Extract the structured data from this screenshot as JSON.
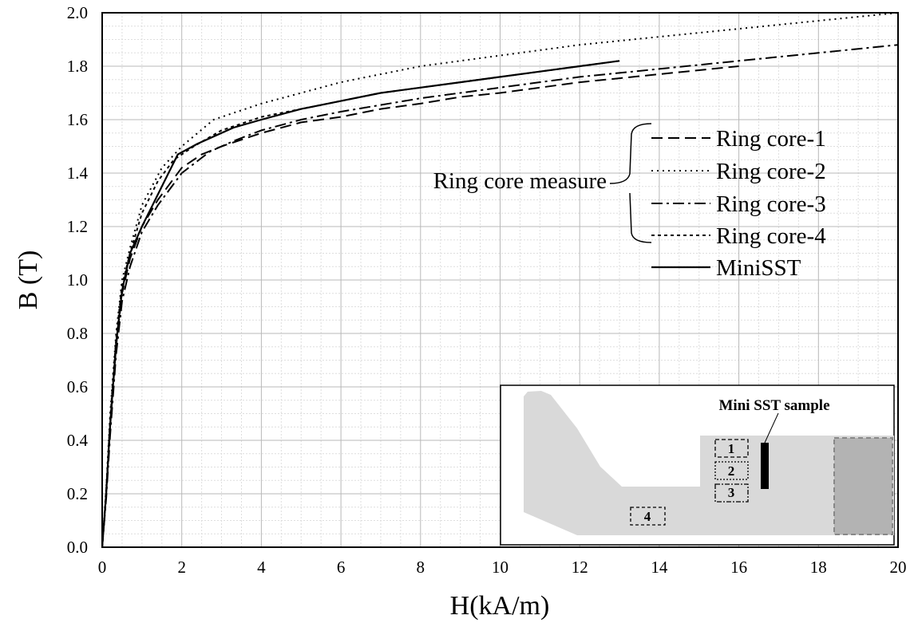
{
  "chart_data": {
    "type": "line",
    "title": "",
    "xlabel": "H(kA/m)",
    "ylabel": "B (T)",
    "xlim": [
      0,
      20
    ],
    "ylim": [
      0,
      2.0
    ],
    "xticks": [
      "0",
      "2",
      "4",
      "6",
      "8",
      "10",
      "12",
      "14",
      "16",
      "18",
      "20"
    ],
    "yticks": [
      "0.0",
      "0.2",
      "0.4",
      "0.6",
      "0.8",
      "1.0",
      "1.2",
      "1.4",
      "1.6",
      "1.8",
      "2.0"
    ],
    "grid": true,
    "legend_position": "right",
    "legend_group_label": "Ring core measure",
    "series": [
      {
        "name": "Ring core-1",
        "style": "dashed",
        "x": [
          0,
          0.1,
          0.2,
          0.35,
          0.5,
          0.7,
          1.0,
          1.4,
          2.0,
          2.5,
          3.0,
          4.0,
          5.0,
          6.0,
          7.0,
          8.0,
          9.0,
          10.0,
          11.0,
          12.0,
          13.0,
          14.0,
          15.0,
          16.0
        ],
        "y": [
          0,
          0.2,
          0.45,
          0.75,
          0.95,
          1.08,
          1.2,
          1.3,
          1.42,
          1.47,
          1.5,
          1.55,
          1.59,
          1.61,
          1.64,
          1.66,
          1.685,
          1.7,
          1.72,
          1.74,
          1.755,
          1.77,
          1.785,
          1.8
        ]
      },
      {
        "name": "Ring core-2",
        "style": "dotted",
        "x": [
          0,
          0.1,
          0.2,
          0.35,
          0.5,
          0.7,
          1.0,
          1.5,
          2.0,
          2.8,
          4.0,
          6.0,
          8.0,
          10.0,
          12.0,
          14.0,
          16.0,
          18.0,
          20.0
        ],
        "y": [
          0,
          0.22,
          0.5,
          0.8,
          1.0,
          1.12,
          1.28,
          1.42,
          1.5,
          1.6,
          1.66,
          1.74,
          1.8,
          1.84,
          1.88,
          1.91,
          1.94,
          1.97,
          2.0
        ]
      },
      {
        "name": "Ring core-3",
        "style": "dash-dot",
        "x": [
          0,
          0.1,
          0.2,
          0.35,
          0.5,
          0.7,
          1.0,
          1.4,
          2.0,
          2.7,
          3.3,
          4.0,
          5.0,
          6.0,
          8.0,
          10.0,
          12.0,
          14.0,
          16.0,
          18.0,
          20.0
        ],
        "y": [
          0,
          0.18,
          0.42,
          0.72,
          0.92,
          1.05,
          1.18,
          1.28,
          1.4,
          1.48,
          1.52,
          1.56,
          1.6,
          1.63,
          1.68,
          1.72,
          1.76,
          1.79,
          1.82,
          1.85,
          1.88
        ]
      },
      {
        "name": "Ring core-4",
        "style": "short-dashed",
        "x": [
          0,
          0.1,
          0.2,
          0.35,
          0.5,
          0.7,
          1.0,
          1.4,
          1.8,
          2.3,
          3.0,
          4.0,
          5.0,
          6.0,
          7.0,
          8.0,
          9.0,
          10.0,
          11.0,
          12.0,
          13.0
        ],
        "y": [
          0,
          0.21,
          0.48,
          0.78,
          0.98,
          1.1,
          1.25,
          1.37,
          1.45,
          1.5,
          1.56,
          1.61,
          1.64,
          1.67,
          1.7,
          1.72,
          1.74,
          1.76,
          1.78,
          1.8,
          1.82
        ]
      },
      {
        "name": "MiniSST",
        "style": "solid",
        "x": [
          0,
          0.1,
          0.2,
          0.35,
          0.5,
          0.7,
          1.0,
          1.4,
          1.9,
          2.4,
          3.3,
          4.0,
          5.0,
          6.0,
          7.0,
          8.0,
          9.0,
          10.0,
          11.0,
          12.0,
          13.0
        ],
        "y": [
          0,
          0.2,
          0.46,
          0.76,
          0.96,
          1.1,
          1.2,
          1.32,
          1.47,
          1.51,
          1.57,
          1.6,
          1.64,
          1.67,
          1.7,
          1.72,
          1.74,
          1.76,
          1.78,
          1.8,
          1.82
        ]
      }
    ],
    "inset": {
      "label": "Mini SST sample",
      "regions": [
        "1",
        "2",
        "3",
        "4"
      ]
    }
  }
}
